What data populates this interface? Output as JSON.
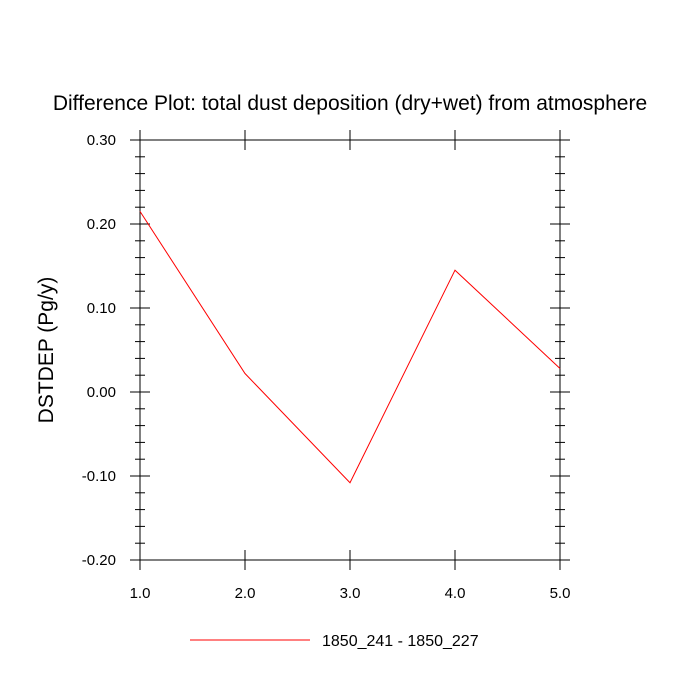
{
  "chart_data": {
    "type": "line",
    "title": "Difference Plot: total dust deposition (dry+wet) from atmosphere",
    "xlabel": "",
    "ylabel": "DSTDEP  (Pg/y)",
    "xlim": [
      1.0,
      5.0
    ],
    "ylim": [
      -0.2,
      0.3
    ],
    "x": [
      1.0,
      2.0,
      3.0,
      4.0,
      5.0
    ],
    "series": [
      {
        "name": "1850_241 - 1850_227",
        "color": "#ff0000",
        "values": [
          0.215,
          0.022,
          -0.108,
          0.145,
          0.028
        ]
      }
    ],
    "x_ticks": [
      1.0,
      2.0,
      3.0,
      4.0,
      5.0
    ],
    "x_tick_labels": [
      "1.0",
      "2.0",
      "3.0",
      "4.0",
      "5.0"
    ],
    "y_ticks": [
      -0.2,
      -0.1,
      0.0,
      0.1,
      0.2,
      0.3
    ],
    "y_tick_labels": [
      "-0.20",
      "-0.10",
      "0.00",
      "0.10",
      "0.20",
      "0.30"
    ],
    "grid": false,
    "legend_position": "bottom"
  }
}
